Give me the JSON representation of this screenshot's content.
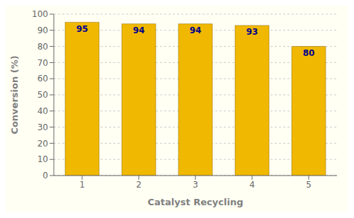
{
  "chart_data": {
    "type": "bar",
    "xlabel": "Catalyst Recycling",
    "ylabel": "Conversion (%)",
    "categories": [
      "1",
      "2",
      "3",
      "4",
      "5"
    ],
    "values": [
      95,
      94,
      94,
      93,
      80
    ],
    "color": "#F0B800",
    "ylim": [
      0,
      100
    ],
    "yticks": [
      0,
      10,
      20,
      30,
      40,
      50,
      60,
      70,
      80,
      90,
      100
    ],
    "grid": true,
    "data_labels": true
  }
}
